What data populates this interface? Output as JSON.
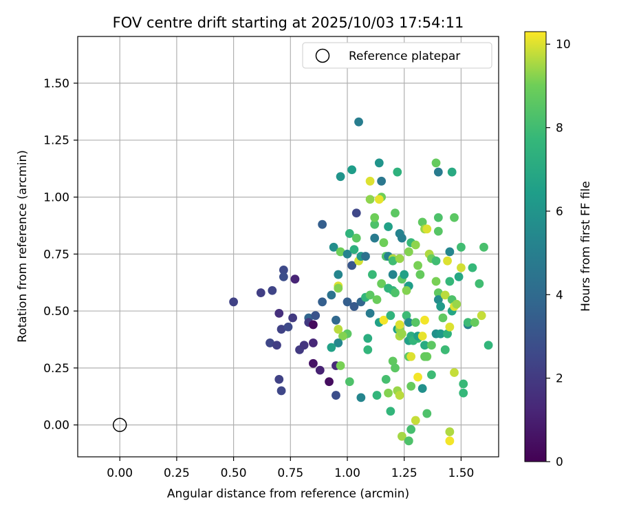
{
  "chart_data": {
    "type": "scatter",
    "title": "FOV centre drift starting at 2025/10/03 17:54:11",
    "xlabel": "Angular distance from reference (arcmin)",
    "ylabel": "Rotation from reference (arcmin)",
    "xlim": [
      -0.185,
      1.665
    ],
    "ylim": [
      -0.14,
      1.705
    ],
    "xticks": [
      0.0,
      0.25,
      0.5,
      0.75,
      1.0,
      1.25,
      1.5
    ],
    "xtick_labels": [
      "0.00",
      "0.25",
      "0.50",
      "0.75",
      "1.00",
      "1.25",
      "1.50"
    ],
    "yticks": [
      0.0,
      0.25,
      0.5,
      0.75,
      1.0,
      1.25,
      1.5
    ],
    "ytick_labels": [
      "0.00",
      "0.25",
      "0.50",
      "0.75",
      "1.00",
      "1.25",
      "1.50"
    ],
    "grid": true,
    "legend": {
      "position": "top-right",
      "entries": [
        "Reference platepar"
      ]
    },
    "reference_point": {
      "x": 0.0,
      "y": 0.0,
      "label": "Reference platepar"
    },
    "colorbar": {
      "label": "Hours from first FF file",
      "range": [
        0,
        10.3
      ],
      "ticks": [
        0,
        2,
        4,
        6,
        8,
        10
      ],
      "tick_labels": [
        "0",
        "2",
        "4",
        "6",
        "8",
        "10"
      ],
      "colormap": "viridis"
    },
    "points": [
      [
        0.5,
        0.54,
        2.3
      ],
      [
        0.62,
        0.58,
        2.2
      ],
      [
        0.67,
        0.59,
        2.4
      ],
      [
        0.72,
        0.68,
        2.6
      ],
      [
        0.72,
        0.65,
        2.8
      ],
      [
        0.77,
        0.64,
        1.2
      ],
      [
        0.7,
        0.49,
        1.6
      ],
      [
        0.76,
        0.47,
        2.0
      ],
      [
        0.71,
        0.42,
        2.3
      ],
      [
        0.74,
        0.43,
        2.6
      ],
      [
        0.66,
        0.36,
        2.5
      ],
      [
        0.69,
        0.35,
        2.2
      ],
      [
        0.79,
        0.33,
        2.0
      ],
      [
        0.81,
        0.35,
        1.8
      ],
      [
        0.7,
        0.2,
        2.3
      ],
      [
        0.71,
        0.15,
        2.5
      ],
      [
        0.85,
        0.36,
        1.3
      ],
      [
        0.85,
        0.27,
        0.6
      ],
      [
        0.88,
        0.24,
        1.1
      ],
      [
        0.92,
        0.19,
        0.4
      ],
      [
        0.95,
        0.26,
        1.4
      ],
      [
        0.95,
        0.13,
        2.8
      ],
      [
        0.83,
        0.47,
        3.8
      ],
      [
        0.83,
        0.45,
        2.0
      ],
      [
        0.85,
        0.44,
        0.3
      ],
      [
        0.86,
        0.48,
        3.0
      ],
      [
        0.89,
        0.54,
        3.5
      ],
      [
        0.89,
        0.88,
        3.5
      ],
      [
        0.93,
        0.57,
        4.4
      ],
      [
        0.94,
        0.78,
        5.7
      ],
      [
        0.95,
        0.46,
        3.9
      ],
      [
        0.96,
        0.66,
        5.3
      ],
      [
        0.97,
        0.76,
        9.0
      ],
      [
        0.97,
        1.09,
        6.0
      ],
      [
        1.0,
        0.75,
        5.2
      ],
      [
        1.0,
        0.54,
        3.5
      ],
      [
        1.02,
        0.7,
        3.1
      ],
      [
        1.03,
        0.52,
        3.3
      ],
      [
        1.04,
        0.93,
        2.5
      ],
      [
        1.05,
        1.33,
        4.9
      ],
      [
        1.06,
        0.54,
        3.8
      ],
      [
        1.02,
        1.12,
        6.4
      ],
      [
        1.01,
        0.84,
        7.5
      ],
      [
        1.04,
        0.82,
        8.6
      ],
      [
        1.03,
        0.77,
        7.3
      ],
      [
        1.05,
        0.72,
        9.9
      ],
      [
        1.06,
        0.74,
        6.1
      ],
      [
        1.08,
        0.74,
        4.3
      ],
      [
        1.08,
        0.56,
        7.6
      ],
      [
        1.1,
        0.57,
        8.6
      ],
      [
        1.1,
        0.49,
        4.8
      ],
      [
        1.09,
        0.38,
        7.2
      ],
      [
        1.09,
        0.33,
        7.6
      ],
      [
        1.1,
        1.07,
        10.0
      ],
      [
        1.1,
        0.99,
        9.3
      ],
      [
        1.12,
        0.88,
        8.3
      ],
      [
        1.12,
        0.91,
        9.0
      ],
      [
        1.12,
        0.82,
        4.8
      ],
      [
        1.11,
        0.66,
        7.8
      ],
      [
        1.13,
        0.55,
        8.9
      ],
      [
        1.14,
        0.45,
        6.6
      ],
      [
        1.15,
        0.62,
        8.9
      ],
      [
        1.14,
        1.15,
        6.0
      ],
      [
        1.15,
        1.07,
        4.6
      ],
      [
        1.15,
        1.0,
        9.0
      ],
      [
        1.14,
        0.99,
        10.1
      ],
      [
        1.16,
        0.8,
        9.0
      ],
      [
        1.17,
        0.74,
        8.4
      ],
      [
        1.18,
        0.87,
        6.6
      ],
      [
        1.18,
        0.6,
        7.5
      ],
      [
        1.18,
        0.74,
        5.2
      ],
      [
        1.2,
        0.73,
        9.6
      ],
      [
        1.2,
        0.72,
        8.0
      ],
      [
        1.2,
        0.66,
        5.3
      ],
      [
        1.21,
        0.93,
        8.6
      ],
      [
        1.22,
        1.11,
        7.4
      ],
      [
        1.23,
        0.84,
        5.2
      ],
      [
        1.23,
        0.73,
        9.4
      ],
      [
        1.24,
        0.82,
        5.0
      ],
      [
        1.24,
        0.64,
        8.6
      ],
      [
        1.25,
        0.66,
        6.6
      ],
      [
        1.27,
        0.61,
        6.4
      ],
      [
        1.27,
        0.76,
        9.2
      ],
      [
        1.28,
        0.8,
        7.8
      ],
      [
        1.3,
        0.79,
        9.3
      ],
      [
        1.31,
        0.7,
        9.1
      ],
      [
        1.32,
        0.66,
        8.8
      ],
      [
        1.33,
        0.89,
        8.7
      ],
      [
        1.34,
        0.86,
        9.4
      ],
      [
        1.35,
        0.86,
        10.0
      ],
      [
        1.36,
        0.75,
        9.6
      ],
      [
        1.37,
        0.73,
        8.9
      ],
      [
        1.39,
        1.15,
        8.8
      ],
      [
        1.4,
        1.11,
        4.8
      ],
      [
        1.4,
        0.91,
        8.3
      ],
      [
        1.4,
        0.85,
        8.5
      ],
      [
        1.39,
        0.72,
        8.0
      ],
      [
        1.39,
        0.63,
        9.1
      ],
      [
        1.4,
        0.58,
        8.7
      ],
      [
        1.4,
        0.55,
        5.6
      ],
      [
        1.41,
        0.52,
        6.3
      ],
      [
        1.43,
        0.57,
        9.7
      ],
      [
        1.44,
        0.72,
        10.0
      ],
      [
        1.45,
        0.76,
        5.3
      ],
      [
        1.45,
        0.63,
        7.7
      ],
      [
        1.46,
        1.11,
        7.0
      ],
      [
        1.47,
        0.91,
        8.6
      ],
      [
        1.46,
        0.55,
        8.3
      ],
      [
        1.46,
        0.5,
        6.8
      ],
      [
        1.47,
        0.52,
        10.0
      ],
      [
        1.48,
        0.53,
        9.4
      ],
      [
        1.49,
        0.65,
        6.9
      ],
      [
        1.5,
        0.69,
        9.9
      ],
      [
        1.5,
        0.78,
        8.0
      ],
      [
        1.53,
        0.44,
        5.1
      ],
      [
        1.53,
        0.45,
        7.9
      ],
      [
        1.55,
        0.69,
        7.7
      ],
      [
        1.56,
        0.45,
        8.8
      ],
      [
        1.58,
        0.62,
        8.0
      ],
      [
        1.59,
        0.48,
        9.8
      ],
      [
        1.6,
        0.78,
        8.2
      ],
      [
        1.62,
        0.35,
        7.6
      ],
      [
        1.06,
        0.12,
        5.3
      ],
      [
        1.13,
        0.13,
        7.6
      ],
      [
        1.17,
        0.2,
        8.1
      ],
      [
        1.18,
        0.14,
        9.2
      ],
      [
        1.19,
        0.06,
        7.6
      ],
      [
        1.2,
        0.28,
        8.7
      ],
      [
        1.21,
        0.25,
        8.6
      ],
      [
        1.22,
        0.15,
        9.4
      ],
      [
        1.23,
        0.13,
        9.7
      ],
      [
        1.24,
        -0.05,
        9.5
      ],
      [
        1.27,
        -0.07,
        8.3
      ],
      [
        1.28,
        -0.02,
        8.1
      ],
      [
        1.28,
        0.17,
        8.8
      ],
      [
        1.3,
        0.02,
        9.8
      ],
      [
        1.31,
        0.21,
        10.2
      ],
      [
        1.33,
        0.16,
        5.8
      ],
      [
        1.35,
        0.05,
        8.3
      ],
      [
        1.37,
        0.22,
        7.9
      ],
      [
        1.45,
        -0.03,
        9.6
      ],
      [
        1.45,
        -0.07,
        10.2
      ],
      [
        1.47,
        0.23,
        9.8
      ],
      [
        1.51,
        0.14,
        7.7
      ],
      [
        1.51,
        0.18,
        7.8
      ],
      [
        1.01,
        0.19,
        8.3
      ],
      [
        1.0,
        0.4,
        8.6
      ],
      [
        0.98,
        0.39,
        9.2
      ],
      [
        0.96,
        0.36,
        5.4
      ],
      [
        0.97,
        0.26,
        9.1
      ],
      [
        0.96,
        0.42,
        9.7
      ],
      [
        0.96,
        0.61,
        10.0
      ],
      [
        0.96,
        0.6,
        9.2
      ],
      [
        0.93,
        0.34,
        6.6
      ],
      [
        1.16,
        0.46,
        10.2
      ],
      [
        1.19,
        0.48,
        7.5
      ],
      [
        1.2,
        0.59,
        7.6
      ],
      [
        1.21,
        0.58,
        8.3
      ],
      [
        1.22,
        0.42,
        6.5
      ],
      [
        1.23,
        0.42,
        9.3
      ],
      [
        1.23,
        0.39,
        9.6
      ],
      [
        1.23,
        0.44,
        10.0
      ],
      [
        1.24,
        0.4,
        9.4
      ],
      [
        1.26,
        0.59,
        9.2
      ],
      [
        1.26,
        0.48,
        7.9
      ],
      [
        1.27,
        0.45,
        5.5
      ],
      [
        1.27,
        0.37,
        6.6
      ],
      [
        1.27,
        0.3,
        8.6
      ],
      [
        1.28,
        0.3,
        10.0
      ],
      [
        1.28,
        0.39,
        7.2
      ],
      [
        1.29,
        0.37,
        7.6
      ],
      [
        1.3,
        0.45,
        8.5
      ],
      [
        1.31,
        0.38,
        7.8
      ],
      [
        1.31,
        0.39,
        6.5
      ],
      [
        1.33,
        0.39,
        10.1
      ],
      [
        1.34,
        0.46,
        10.2
      ],
      [
        1.34,
        0.35,
        7.1
      ],
      [
        1.35,
        0.3,
        8.9
      ],
      [
        1.37,
        0.35,
        8.6
      ],
      [
        1.39,
        0.4,
        5.8
      ],
      [
        1.41,
        0.4,
        6.2
      ],
      [
        1.42,
        0.47,
        8.7
      ],
      [
        1.43,
        0.33,
        6.8
      ],
      [
        1.44,
        0.4,
        7.4
      ],
      [
        1.45,
        0.43,
        10.0
      ],
      [
        1.43,
        0.33,
        7.9
      ],
      [
        1.34,
        0.3,
        8.8
      ]
    ]
  }
}
